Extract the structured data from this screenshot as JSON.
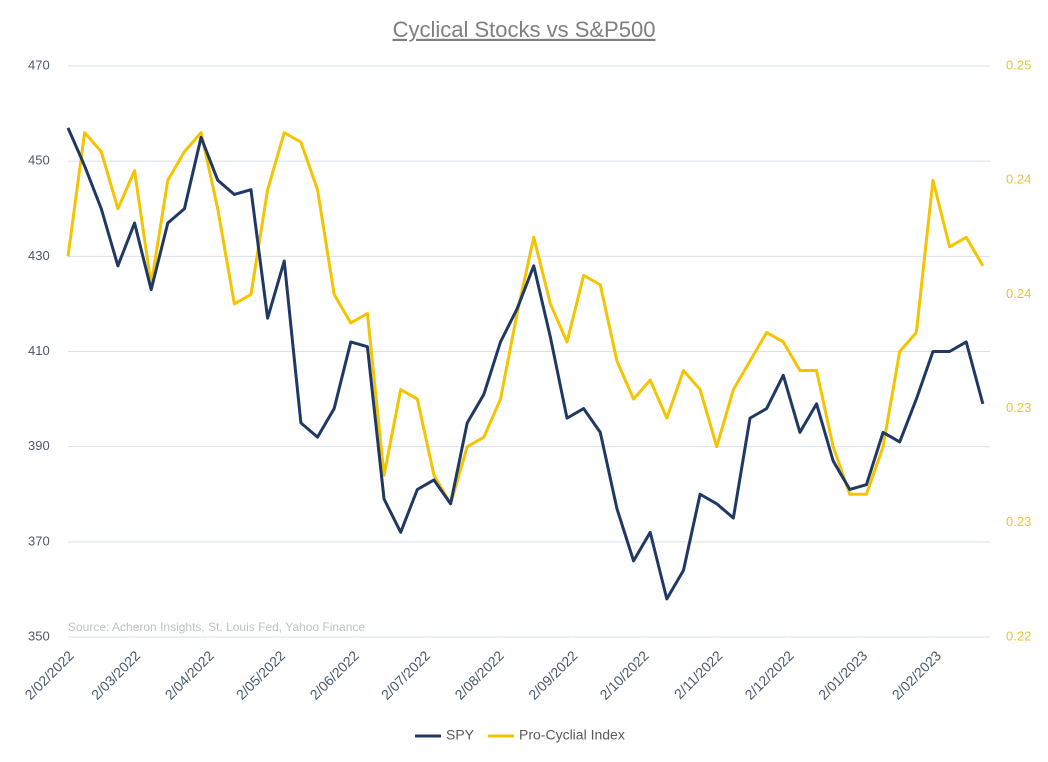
{
  "chart_data": {
    "type": "line",
    "title": "Cyclical Stocks vs S&P500",
    "annotation": "Source: Acheron Insights, St. Louis Fed, Yahoo Finance",
    "x": [
      "2022-02-02",
      "2022-02-09",
      "2022-02-16",
      "2022-02-23",
      "2022-03-02",
      "2022-03-09",
      "2022-03-16",
      "2022-03-23",
      "2022-03-30",
      "2022-04-06",
      "2022-04-13",
      "2022-04-20",
      "2022-04-27",
      "2022-05-04",
      "2022-05-11",
      "2022-05-18",
      "2022-05-25",
      "2022-06-01",
      "2022-06-08",
      "2022-06-15",
      "2022-06-22",
      "2022-06-29",
      "2022-07-06",
      "2022-07-13",
      "2022-07-20",
      "2022-07-27",
      "2022-08-03",
      "2022-08-10",
      "2022-08-17",
      "2022-08-24",
      "2022-08-31",
      "2022-09-07",
      "2022-09-14",
      "2022-09-21",
      "2022-09-28",
      "2022-10-05",
      "2022-10-12",
      "2022-10-19",
      "2022-10-26",
      "2022-11-02",
      "2022-11-09",
      "2022-11-16",
      "2022-11-23",
      "2022-11-30",
      "2022-12-07",
      "2022-12-14",
      "2022-12-21",
      "2022-12-28",
      "2023-01-04",
      "2023-01-11",
      "2023-01-18",
      "2023-01-25",
      "2023-02-01",
      "2023-02-08",
      "2023-02-15",
      "2023-02-22"
    ],
    "xlim": [
      "2022-02-02",
      "2023-02-25"
    ],
    "xticks": [
      {
        "value": "2022-02-02",
        "label": "2/02/2022"
      },
      {
        "value": "2022-03-02",
        "label": "2/03/2022"
      },
      {
        "value": "2022-04-02",
        "label": "2/04/2022"
      },
      {
        "value": "2022-05-02",
        "label": "2/05/2022"
      },
      {
        "value": "2022-06-02",
        "label": "2/06/2022"
      },
      {
        "value": "2022-07-02",
        "label": "2/07/2022"
      },
      {
        "value": "2022-08-02",
        "label": "2/08/2022"
      },
      {
        "value": "2022-09-02",
        "label": "2/09/2022"
      },
      {
        "value": "2022-10-02",
        "label": "2/10/2022"
      },
      {
        "value": "2022-11-02",
        "label": "2/11/2022"
      },
      {
        "value": "2022-12-02",
        "label": "2/12/2022"
      },
      {
        "value": "2023-01-02",
        "label": "2/01/2023"
      },
      {
        "value": "2023-02-02",
        "label": "2/02/2023"
      }
    ],
    "ylim": [
      350,
      470
    ],
    "yticks": [
      350,
      370,
      390,
      410,
      430,
      450,
      470
    ],
    "y2lim": [
      0.22,
      0.25
    ],
    "y2ticks": [
      {
        "value": 0.22,
        "label": "0.22"
      },
      {
        "value": 0.226,
        "label": "0.23"
      },
      {
        "value": 0.232,
        "label": "0.23"
      },
      {
        "value": 0.238,
        "label": "0.24"
      },
      {
        "value": 0.244,
        "label": "0.24"
      },
      {
        "value": 0.25,
        "label": "0.25"
      }
    ],
    "grid": true,
    "legend": "bottom",
    "series": [
      {
        "name": "SPY",
        "color": "#1f3864",
        "values": [
          457,
          449,
          440,
          428,
          437,
          423,
          437,
          440,
          455,
          446,
          443,
          444,
          417,
          429,
          395,
          392,
          398,
          412,
          411,
          379,
          372,
          381,
          383,
          378,
          395,
          401,
          412,
          419,
          428,
          413,
          396,
          398,
          393,
          377,
          366,
          372,
          358,
          364,
          380,
          378,
          375,
          396,
          398,
          405,
          393,
          399,
          387,
          381,
          382,
          393,
          391,
          400,
          410,
          410,
          412,
          399
        ]
      },
      {
        "name": "Pro-Cyclial Index",
        "color": "#f5c400",
        "axis": "y2",
        "values": [
          0.24,
          0.2465,
          0.2455,
          0.2425,
          0.2445,
          0.2385,
          0.244,
          0.2455,
          0.2465,
          0.2425,
          0.2375,
          0.238,
          0.2435,
          0.2465,
          0.246,
          0.2435,
          0.238,
          0.2365,
          0.237,
          0.2285,
          0.233,
          0.2325,
          0.2285,
          0.227,
          0.23,
          0.2305,
          0.2325,
          0.237,
          0.241,
          0.2375,
          0.2355,
          0.239,
          0.2385,
          0.2345,
          0.2325,
          0.2335,
          0.2315,
          0.234,
          0.233,
          0.23,
          0.233,
          0.2345,
          0.236,
          0.2355,
          0.234,
          0.234,
          0.23,
          0.2275,
          0.2275,
          0.23,
          0.235,
          0.236,
          0.244,
          0.2405,
          0.241,
          0.2395
        ]
      }
    ]
  }
}
